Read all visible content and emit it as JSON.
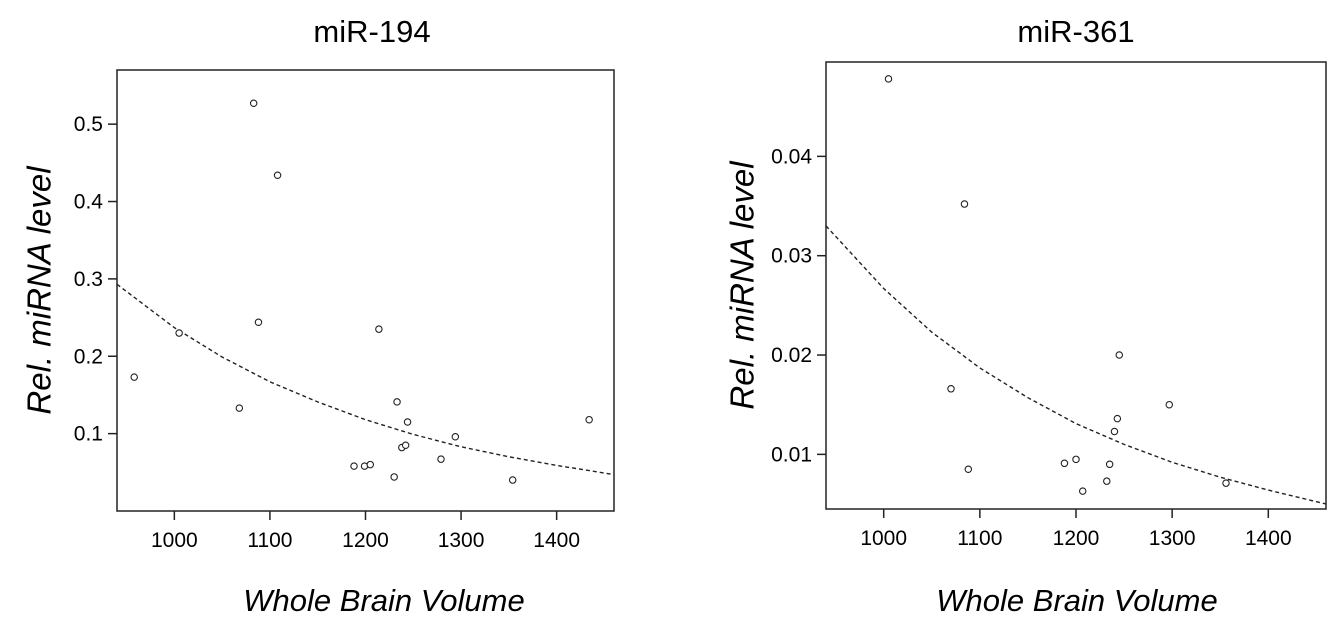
{
  "chart_data": [
    {
      "type": "scatter",
      "title": "miR-194",
      "xlabel": "Whole Brain Volume",
      "ylabel": "Rel. miRNA level",
      "xlim": [
        940,
        1460
      ],
      "ylim": [
        0.0,
        0.57
      ],
      "xticks": [
        1000,
        1100,
        1200,
        1300,
        1400
      ],
      "yticks": [
        0.1,
        0.2,
        0.3,
        0.4,
        0.5
      ],
      "ytick_labels": [
        "0.1",
        "0.2",
        "0.3",
        "0.4",
        "0.5"
      ],
      "grid": false,
      "points": [
        {
          "x": 958,
          "y": 0.173
        },
        {
          "x": 1005,
          "y": 0.23
        },
        {
          "x": 1068,
          "y": 0.133
        },
        {
          "x": 1083,
          "y": 0.527
        },
        {
          "x": 1088,
          "y": 0.244
        },
        {
          "x": 1108,
          "y": 0.434
        },
        {
          "x": 1188,
          "y": 0.058
        },
        {
          "x": 1199,
          "y": 0.058
        },
        {
          "x": 1205,
          "y": 0.06
        },
        {
          "x": 1214,
          "y": 0.235
        },
        {
          "x": 1230,
          "y": 0.044
        },
        {
          "x": 1233,
          "y": 0.141
        },
        {
          "x": 1238,
          "y": 0.082
        },
        {
          "x": 1242,
          "y": 0.085
        },
        {
          "x": 1244,
          "y": 0.115
        },
        {
          "x": 1279,
          "y": 0.067
        },
        {
          "x": 1294,
          "y": 0.096
        },
        {
          "x": 1354,
          "y": 0.04
        },
        {
          "x": 1434,
          "y": 0.118
        }
      ],
      "fit": {
        "style": "dashed",
        "x": [
          940,
          1000,
          1050,
          1100,
          1150,
          1200,
          1250,
          1300,
          1350,
          1400,
          1460
        ],
        "y": [
          0.293,
          0.237,
          0.199,
          0.167,
          0.141,
          0.118,
          0.099,
          0.083,
          0.07,
          0.059,
          0.047
        ]
      }
    },
    {
      "type": "scatter",
      "title": "miR-361",
      "xlabel": "Whole Brain Volume",
      "ylabel": "Rel. miRNA level",
      "xlim": [
        940,
        1460
      ],
      "ylim": [
        0.0045,
        0.0495
      ],
      "xticks": [
        1000,
        1100,
        1200,
        1300,
        1400
      ],
      "yticks": [
        0.01,
        0.02,
        0.03,
        0.04
      ],
      "ytick_labels": [
        "0.01",
        "0.02",
        "0.03",
        "0.04"
      ],
      "grid": false,
      "points": [
        {
          "x": 1005,
          "y": 0.0478
        },
        {
          "x": 1070,
          "y": 0.0166
        },
        {
          "x": 1084,
          "y": 0.0352
        },
        {
          "x": 1088,
          "y": 0.0085
        },
        {
          "x": 1188,
          "y": 0.0091
        },
        {
          "x": 1200,
          "y": 0.0095
        },
        {
          "x": 1207,
          "y": 0.0063
        },
        {
          "x": 1232,
          "y": 0.0073
        },
        {
          "x": 1235,
          "y": 0.009
        },
        {
          "x": 1240,
          "y": 0.0123
        },
        {
          "x": 1243,
          "y": 0.0136
        },
        {
          "x": 1245,
          "y": 0.02
        },
        {
          "x": 1297,
          "y": 0.015
        },
        {
          "x": 1356,
          "y": 0.0071
        }
      ],
      "fit": {
        "style": "dashed",
        "x": [
          940,
          1000,
          1050,
          1100,
          1150,
          1200,
          1250,
          1300,
          1350,
          1400,
          1460
        ],
        "y": [
          0.033,
          0.0267,
          0.0223,
          0.0187,
          0.0157,
          0.0131,
          0.011,
          0.0092,
          0.0077,
          0.0064,
          0.005
        ]
      }
    }
  ]
}
